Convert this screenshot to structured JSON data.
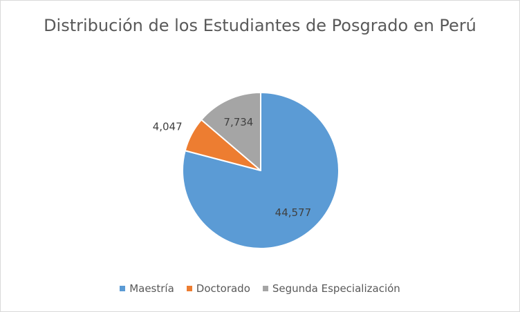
{
  "chart_data": {
    "type": "pie",
    "title": "Distribución de los Estudiantes de Posgrado en Perú",
    "categories": [
      "Maestría",
      "Doctorado",
      "Segunda Especialización"
    ],
    "values": [
      44577,
      4047,
      7734
    ],
    "data_labels": [
      "44,577",
      "4,047",
      "7,734"
    ],
    "colors": [
      "#5b9bd5",
      "#ed7d31",
      "#a5a5a5"
    ],
    "legend_position": "bottom",
    "start_angle": "top, clockwise"
  }
}
